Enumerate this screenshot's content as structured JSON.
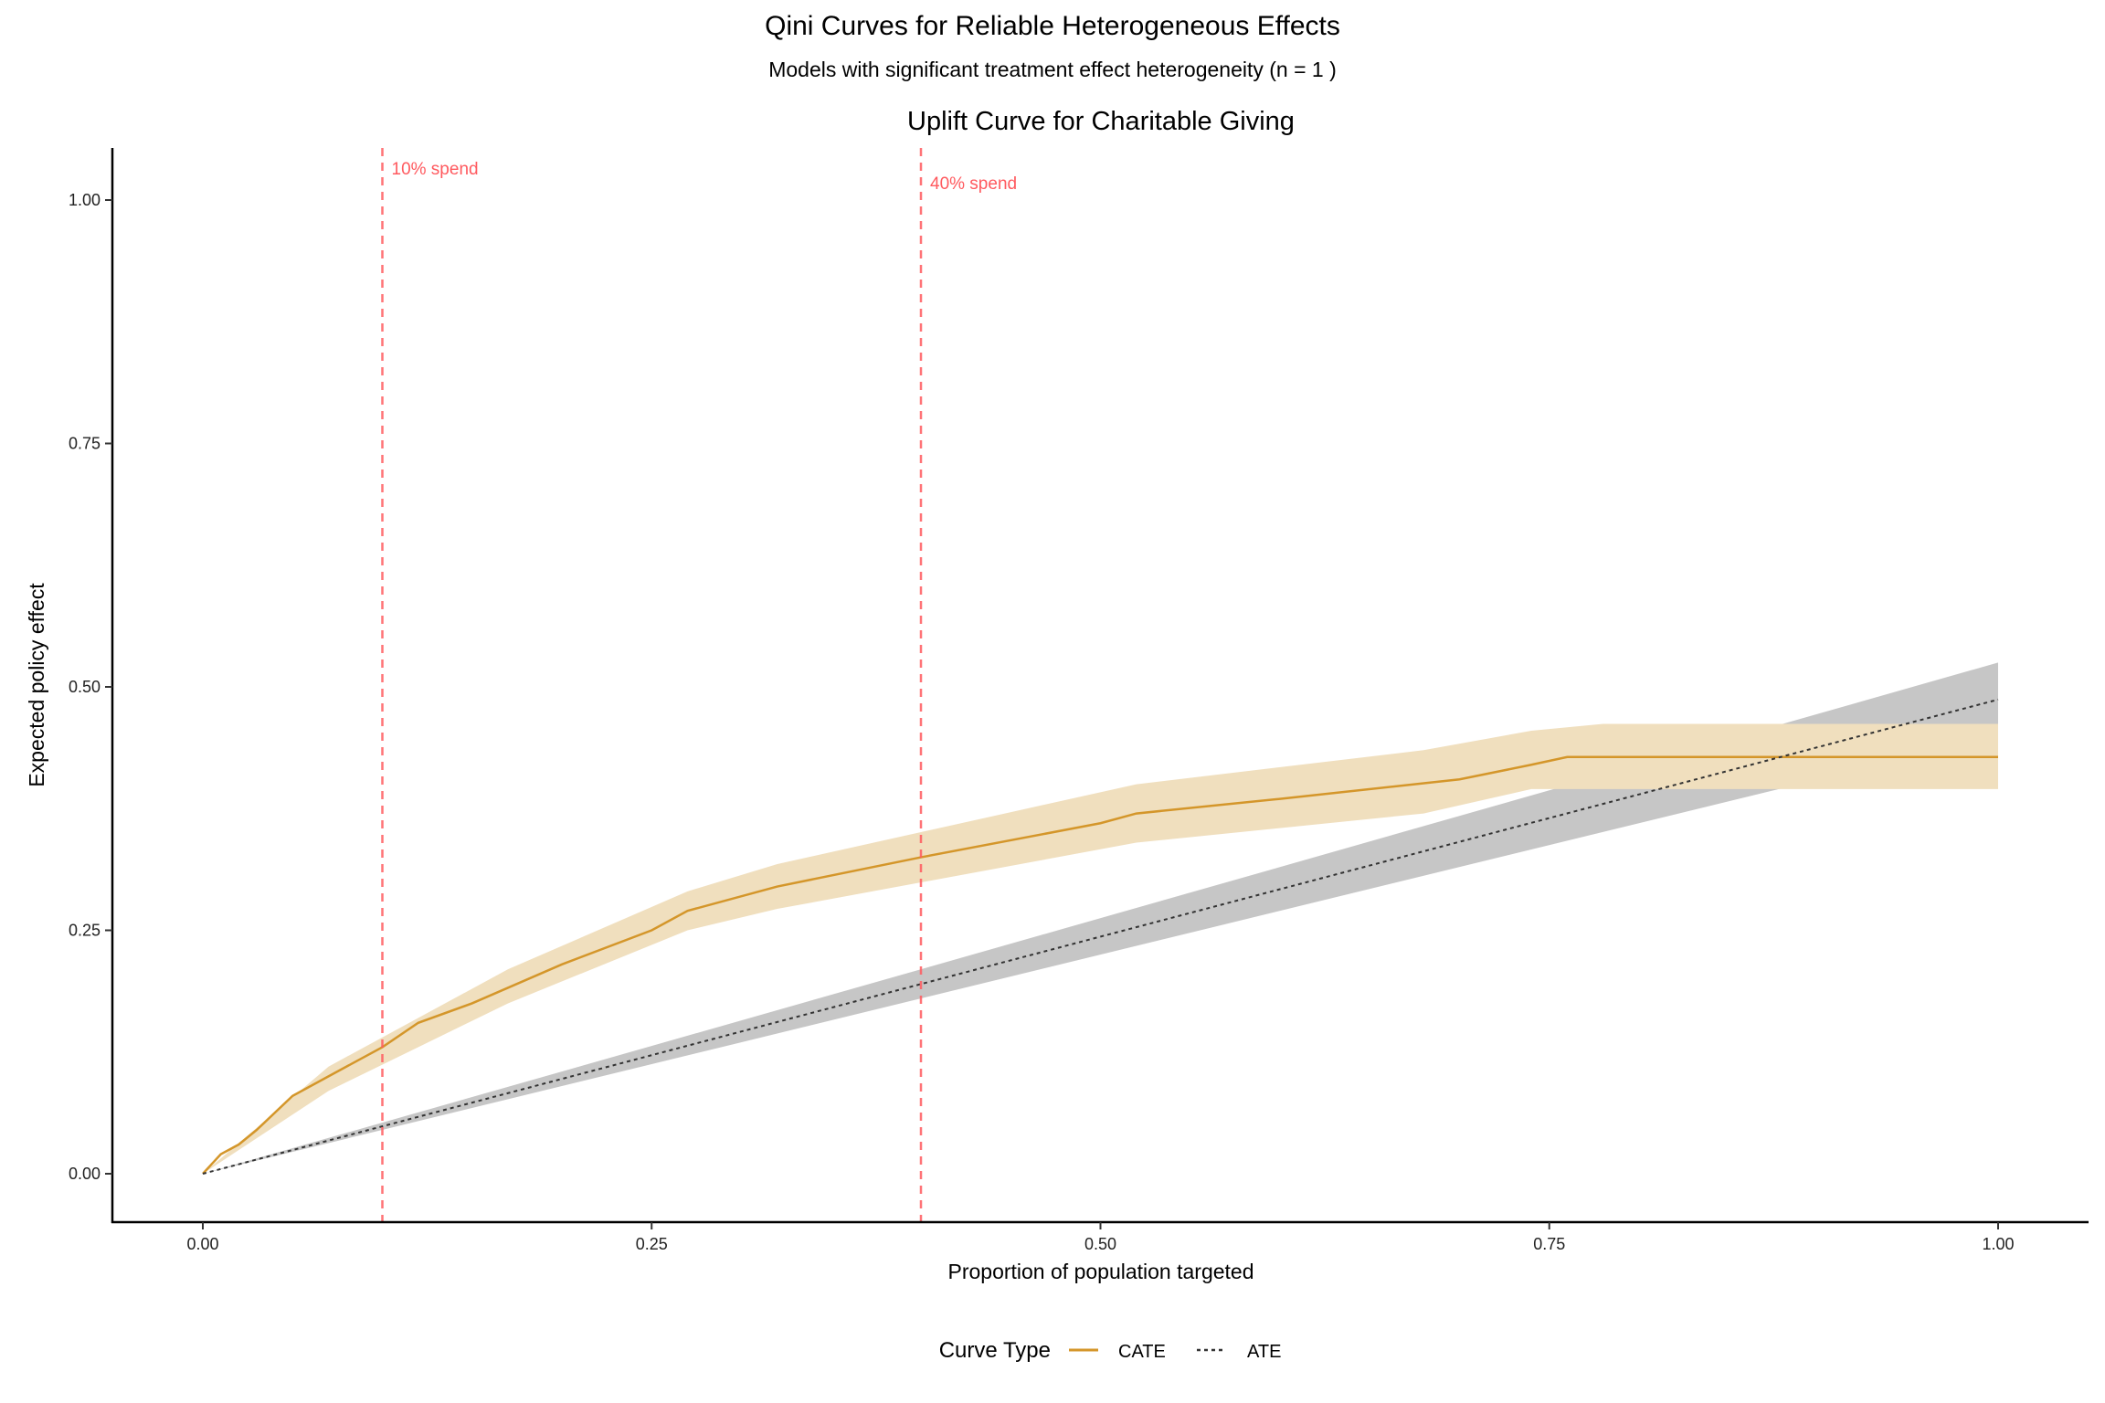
{
  "chart_data": {
    "type": "line",
    "title": "Qini Curves for Reliable Heterogeneous Effects",
    "subtitle": "Models with significant treatment effect heterogeneity (n = 1 )",
    "panel_title": "Uplift Curve for Charitable Giving",
    "xlabel": "Proportion of population targeted",
    "ylabel": "Expected policy effect",
    "xlim": [
      -0.05,
      1.05
    ],
    "ylim": [
      -0.05,
      1.05
    ],
    "x_ticks": [
      0,
      0.25,
      0.5,
      0.75,
      1
    ],
    "x_tick_labels": [
      "0.00",
      "0.25",
      "0.50",
      "0.75",
      "1.00"
    ],
    "y_ticks": [
      0,
      0.25,
      0.5,
      0.75,
      1
    ],
    "y_tick_labels": [
      "0.00",
      "0.25",
      "0.50",
      "0.75",
      "1.00"
    ],
    "grid": false,
    "legend": {
      "title": "Curve Type",
      "placement": "bottom",
      "entries": [
        "CATE",
        "ATE"
      ]
    },
    "series": [
      {
        "name": "CATE",
        "color": "#d4962a",
        "dash": "solid",
        "x": [
          0,
          0.01,
          0.02,
          0.03,
          0.05,
          0.07,
          0.1,
          0.12,
          0.15,
          0.2,
          0.25,
          0.27,
          0.32,
          0.4,
          0.5,
          0.52,
          0.6,
          0.7,
          0.74,
          0.76,
          1.0
        ],
        "y": [
          0,
          0.02,
          0.03,
          0.045,
          0.08,
          0.1,
          0.13,
          0.155,
          0.175,
          0.215,
          0.25,
          0.27,
          0.295,
          0.325,
          0.36,
          0.37,
          0.385,
          0.405,
          0.42,
          0.428,
          0.428
        ],
        "band_x": [
          0,
          0.07,
          0.17,
          0.27,
          0.32,
          0.52,
          0.68,
          0.74,
          0.78,
          1.0
        ],
        "band_lower": [
          0,
          0.085,
          0.175,
          0.25,
          0.272,
          0.34,
          0.37,
          0.395,
          0.395,
          0.395
        ],
        "band_upper": [
          0,
          0.11,
          0.21,
          0.29,
          0.318,
          0.4,
          0.435,
          0.455,
          0.462,
          0.462
        ],
        "band_color": "#f0dfbe"
      },
      {
        "name": "ATE",
        "color": "#333333",
        "dash": "dotted",
        "x": [
          0,
          1
        ],
        "y": [
          0,
          0.487
        ],
        "band_x": [
          0,
          1
        ],
        "band_lower": [
          0,
          0.45
        ],
        "band_upper": [
          0,
          0.525
        ],
        "band_color": "#c3c3c3"
      }
    ],
    "annotations": [
      {
        "x": 0.1,
        "label": "10% spend",
        "color": "#ff5a5f"
      },
      {
        "x": 0.4,
        "label": "40% spend",
        "color": "#ff5a5f"
      }
    ]
  }
}
